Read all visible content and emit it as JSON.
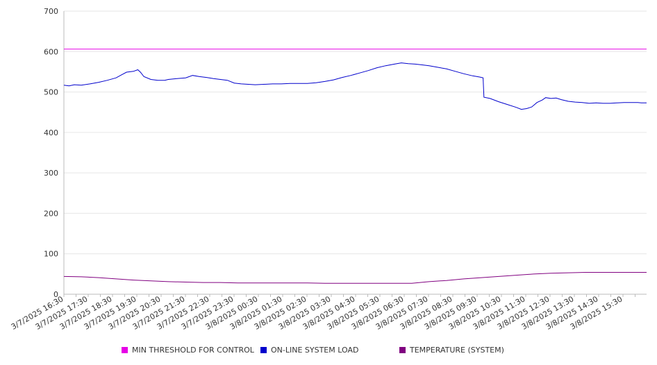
{
  "chart_data": {
    "type": "line",
    "ylim": [
      0,
      700
    ],
    "y_ticks": [
      "0",
      "100",
      "200",
      "300",
      "400",
      "500",
      "600",
      "700"
    ],
    "x_ticks": [
      "3/7/2025 16:30",
      "3/7/2025 17:30",
      "3/7/2025 18:30",
      "3/7/2025 19:30",
      "3/7/2025 20:30",
      "3/7/2025 21:30",
      "3/7/2025 22:30",
      "3/7/2025 23:30",
      "3/8/2025 00:30",
      "3/8/2025 01:30",
      "3/8/2025 02:30",
      "3/8/2025 03:30",
      "3/8/2025 04:30",
      "3/8/2025 05:30",
      "3/8/2025 06:30",
      "3/8/2025 07:30",
      "3/8/2025 08:30",
      "3/8/2025 09:30",
      "3/8/2025 10:30",
      "3/8/2025 11:30",
      "3/8/2025 12:30",
      "3/8/2025 13:30",
      "3/8/2025 14:30",
      "3/8/2025 15:30"
    ],
    "grid": true,
    "legend_position": "bottom",
    "series": [
      {
        "name": "MIN THRESHOLD FOR CONTROL",
        "color": "#e600e6",
        "points": [
          [
            0,
            606
          ],
          [
            24,
            606
          ]
        ]
      },
      {
        "name": "ON-LINE SYSTEM LOAD",
        "color": "#0000cc",
        "points": [
          [
            0,
            517
          ],
          [
            0.3,
            515
          ],
          [
            0.6,
            518
          ],
          [
            1.0,
            517
          ],
          [
            1.5,
            520
          ],
          [
            2.0,
            524
          ],
          [
            2.5,
            529
          ],
          [
            3.0,
            535
          ],
          [
            3.3,
            542
          ],
          [
            3.6,
            549
          ],
          [
            4.0,
            551
          ],
          [
            4.25,
            555
          ],
          [
            4.4,
            549
          ],
          [
            4.6,
            538
          ],
          [
            5.0,
            531
          ],
          [
            5.4,
            529
          ],
          [
            5.8,
            529
          ],
          [
            6.0,
            531
          ],
          [
            6.5,
            533
          ],
          [
            7.0,
            535
          ],
          [
            7.4,
            541
          ],
          [
            7.8,
            538
          ],
          [
            8.2,
            536
          ],
          [
            8.6,
            533
          ],
          [
            9.0,
            531
          ],
          [
            9.4,
            529
          ],
          [
            9.8,
            522
          ],
          [
            10.2,
            520
          ],
          [
            10.6,
            519
          ],
          [
            11.0,
            518
          ],
          [
            11.5,
            519
          ],
          [
            12.0,
            520
          ],
          [
            12.5,
            520
          ],
          [
            13.0,
            521
          ],
          [
            13.5,
            521
          ],
          [
            14.0,
            521
          ],
          [
            14.5,
            523
          ],
          [
            15.0,
            526
          ],
          [
            15.5,
            530
          ],
          [
            16.0,
            536
          ],
          [
            16.5,
            541
          ],
          [
            17.0,
            547
          ],
          [
            17.5,
            553
          ],
          [
            18.0,
            560
          ],
          [
            18.5,
            565
          ],
          [
            19.0,
            569
          ],
          [
            19.4,
            572
          ],
          [
            19.8,
            570
          ],
          [
            20.2,
            569
          ],
          [
            20.6,
            567
          ],
          [
            21.0,
            565
          ],
          [
            21.5,
            561
          ],
          [
            22.0,
            557
          ],
          [
            22.5,
            551
          ],
          [
            23.0,
            545
          ],
          [
            23.5,
            540
          ],
          [
            23.9,
            537
          ],
          [
            24.1,
            535
          ],
          [
            24.15,
            487
          ],
          [
            24.5,
            484
          ],
          [
            25.0,
            476
          ],
          [
            25.5,
            469
          ],
          [
            26.0,
            462
          ],
          [
            26.3,
            457
          ],
          [
            26.6,
            459
          ],
          [
            26.9,
            463
          ],
          [
            27.2,
            474
          ],
          [
            27.5,
            480
          ],
          [
            27.7,
            486
          ],
          [
            28.0,
            484
          ],
          [
            28.3,
            485
          ],
          [
            28.6,
            481
          ],
          [
            29.0,
            477
          ],
          [
            29.4,
            475
          ],
          [
            29.8,
            474
          ],
          [
            30.2,
            472
          ],
          [
            30.6,
            473
          ],
          [
            31.0,
            472
          ],
          [
            31.4,
            472
          ],
          [
            31.8,
            473
          ],
          [
            32.2,
            474
          ],
          [
            32.6,
            474
          ],
          [
            33.0,
            474
          ],
          [
            33.2,
            473
          ],
          [
            33.5,
            473
          ]
        ]
      },
      {
        "name": "TEMPERATURE (SYSTEM)",
        "color": "#800080",
        "points": [
          [
            0,
            44
          ],
          [
            1,
            43
          ],
          [
            2,
            41
          ],
          [
            3,
            38
          ],
          [
            4,
            35
          ],
          [
            5,
            33
          ],
          [
            6,
            31
          ],
          [
            7,
            30
          ],
          [
            8,
            29
          ],
          [
            9,
            29
          ],
          [
            10,
            28
          ],
          [
            11,
            28
          ],
          [
            12,
            28
          ],
          [
            13,
            28
          ],
          [
            14,
            28
          ],
          [
            15,
            27
          ],
          [
            16,
            27
          ],
          [
            17,
            27
          ],
          [
            18,
            27
          ],
          [
            19,
            27
          ],
          [
            20,
            27
          ],
          [
            21,
            31
          ],
          [
            22,
            34
          ],
          [
            23,
            38
          ],
          [
            24,
            41
          ],
          [
            25,
            44
          ],
          [
            26,
            47
          ],
          [
            27,
            50
          ],
          [
            28,
            52
          ],
          [
            29,
            53
          ],
          [
            30,
            54
          ],
          [
            31,
            54
          ],
          [
            32,
            54
          ],
          [
            33,
            54
          ],
          [
            33.5,
            54
          ]
        ]
      }
    ]
  }
}
